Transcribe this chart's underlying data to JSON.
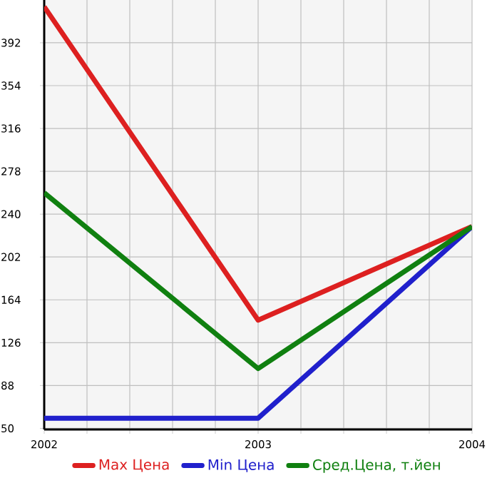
{
  "chart_data": {
    "type": "line",
    "x": [
      2002,
      2003,
      2004
    ],
    "series": [
      {
        "name": "Max Цена",
        "color": "#dd2020",
        "values": [
          424,
          146,
          229
        ]
      },
      {
        "name": "Min Цена",
        "color": "#2020cc",
        "values": [
          59,
          59,
          229
        ]
      },
      {
        "name": "Сред.Цена, т.йен",
        "color": "#108010",
        "values": [
          259,
          103,
          229
        ]
      }
    ],
    "xlim": [
      2002,
      2004
    ],
    "xticks": [
      2002,
      {
        "value": 2002.2,
        "label": null
      },
      {
        "value": 2002.4,
        "label": null
      },
      {
        "value": 2002.6,
        "label": null
      },
      {
        "value": 2002.8,
        "label": null
      },
      2003,
      {
        "value": 2003.2,
        "label": null
      },
      {
        "value": 2003.4,
        "label": null
      },
      {
        "value": 2003.6,
        "label": null
      },
      {
        "value": 2003.8,
        "label": null
      },
      2004
    ],
    "ylim": [
      49,
      430
    ],
    "yticks": [
      50,
      88,
      126,
      164,
      202,
      240,
      278,
      316,
      354,
      392
    ],
    "grid": true,
    "legend": "bottom",
    "marker": "none",
    "line_style": "solid"
  }
}
